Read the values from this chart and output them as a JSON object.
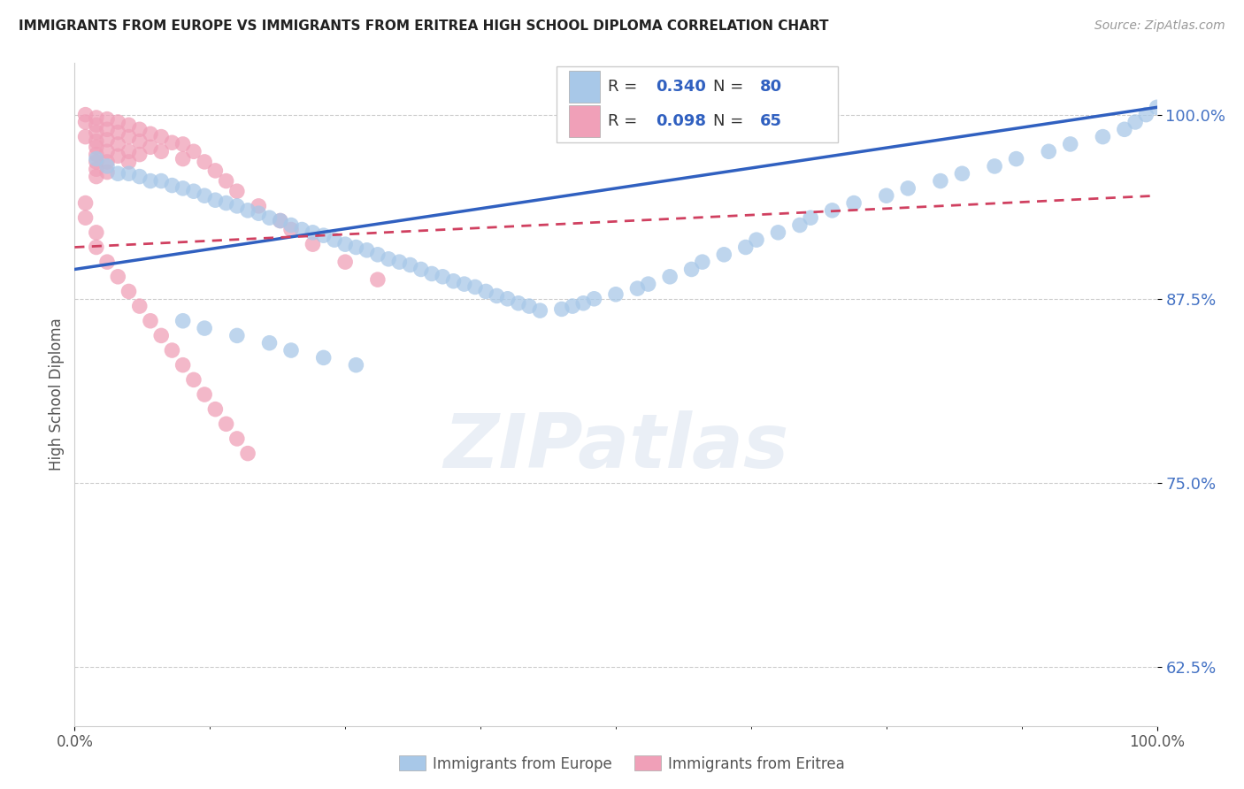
{
  "title": "IMMIGRANTS FROM EUROPE VS IMMIGRANTS FROM ERITREA HIGH SCHOOL DIPLOMA CORRELATION CHART",
  "source": "Source: ZipAtlas.com",
  "ylabel": "High School Diploma",
  "xlim": [
    0.0,
    1.0
  ],
  "ylim": [
    0.585,
    1.035
  ],
  "yticks": [
    0.625,
    0.75,
    0.875,
    1.0
  ],
  "ytick_labels": [
    "62.5%",
    "75.0%",
    "87.5%",
    "100.0%"
  ],
  "europe_color": "#a8c8e8",
  "eritrea_color": "#f0a0b8",
  "europe_R": 0.34,
  "europe_N": 80,
  "eritrea_R": 0.098,
  "eritrea_N": 65,
  "europe_line_color": "#3060c0",
  "eritrea_line_color": "#d04060",
  "europe_line_start_y": 0.895,
  "europe_line_end_y": 1.005,
  "eritrea_line_start_y": 0.91,
  "eritrea_line_end_y": 0.945,
  "europe_x": [
    0.02,
    0.03,
    0.04,
    0.05,
    0.06,
    0.07,
    0.08,
    0.09,
    0.1,
    0.11,
    0.12,
    0.13,
    0.14,
    0.15,
    0.16,
    0.17,
    0.18,
    0.19,
    0.2,
    0.21,
    0.22,
    0.23,
    0.24,
    0.25,
    0.26,
    0.27,
    0.28,
    0.29,
    0.3,
    0.31,
    0.32,
    0.33,
    0.34,
    0.35,
    0.36,
    0.37,
    0.38,
    0.39,
    0.4,
    0.41,
    0.42,
    0.43,
    0.45,
    0.46,
    0.47,
    0.48,
    0.5,
    0.52,
    0.53,
    0.55,
    0.57,
    0.58,
    0.6,
    0.62,
    0.63,
    0.65,
    0.67,
    0.68,
    0.7,
    0.72,
    0.75,
    0.77,
    0.8,
    0.82,
    0.85,
    0.87,
    0.9,
    0.92,
    0.95,
    0.97,
    0.98,
    0.99,
    1.0,
    0.1,
    0.12,
    0.15,
    0.18,
    0.2,
    0.23,
    0.26
  ],
  "europe_y": [
    0.97,
    0.965,
    0.96,
    0.96,
    0.958,
    0.955,
    0.955,
    0.952,
    0.95,
    0.948,
    0.945,
    0.942,
    0.94,
    0.938,
    0.935,
    0.933,
    0.93,
    0.928,
    0.925,
    0.922,
    0.92,
    0.918,
    0.915,
    0.912,
    0.91,
    0.908,
    0.905,
    0.902,
    0.9,
    0.898,
    0.895,
    0.892,
    0.89,
    0.887,
    0.885,
    0.883,
    0.88,
    0.877,
    0.875,
    0.872,
    0.87,
    0.867,
    0.868,
    0.87,
    0.872,
    0.875,
    0.878,
    0.882,
    0.885,
    0.89,
    0.895,
    0.9,
    0.905,
    0.91,
    0.915,
    0.92,
    0.925,
    0.93,
    0.935,
    0.94,
    0.945,
    0.95,
    0.955,
    0.96,
    0.965,
    0.97,
    0.975,
    0.98,
    0.985,
    0.99,
    0.995,
    1.0,
    1.005,
    0.86,
    0.855,
    0.85,
    0.845,
    0.84,
    0.835,
    0.83
  ],
  "eritrea_x": [
    0.01,
    0.01,
    0.01,
    0.02,
    0.02,
    0.02,
    0.02,
    0.02,
    0.02,
    0.02,
    0.02,
    0.02,
    0.03,
    0.03,
    0.03,
    0.03,
    0.03,
    0.03,
    0.04,
    0.04,
    0.04,
    0.04,
    0.05,
    0.05,
    0.05,
    0.05,
    0.06,
    0.06,
    0.06,
    0.07,
    0.07,
    0.08,
    0.08,
    0.09,
    0.1,
    0.1,
    0.11,
    0.12,
    0.13,
    0.14,
    0.15,
    0.17,
    0.19,
    0.2,
    0.22,
    0.25,
    0.28,
    0.01,
    0.01,
    0.02,
    0.02,
    0.03,
    0.04,
    0.05,
    0.06,
    0.07,
    0.08,
    0.09,
    0.1,
    0.11,
    0.12,
    0.13,
    0.14,
    0.15,
    0.16
  ],
  "eritrea_y": [
    1.0,
    0.995,
    0.985,
    0.998,
    0.993,
    0.988,
    0.982,
    0.978,
    0.973,
    0.968,
    0.963,
    0.958,
    0.997,
    0.99,
    0.983,
    0.975,
    0.968,
    0.961,
    0.995,
    0.988,
    0.98,
    0.972,
    0.993,
    0.985,
    0.975,
    0.968,
    0.99,
    0.982,
    0.973,
    0.987,
    0.978,
    0.985,
    0.975,
    0.981,
    0.98,
    0.97,
    0.975,
    0.968,
    0.962,
    0.955,
    0.948,
    0.938,
    0.928,
    0.922,
    0.912,
    0.9,
    0.888,
    0.94,
    0.93,
    0.92,
    0.91,
    0.9,
    0.89,
    0.88,
    0.87,
    0.86,
    0.85,
    0.84,
    0.83,
    0.82,
    0.81,
    0.8,
    0.79,
    0.78,
    0.77
  ]
}
